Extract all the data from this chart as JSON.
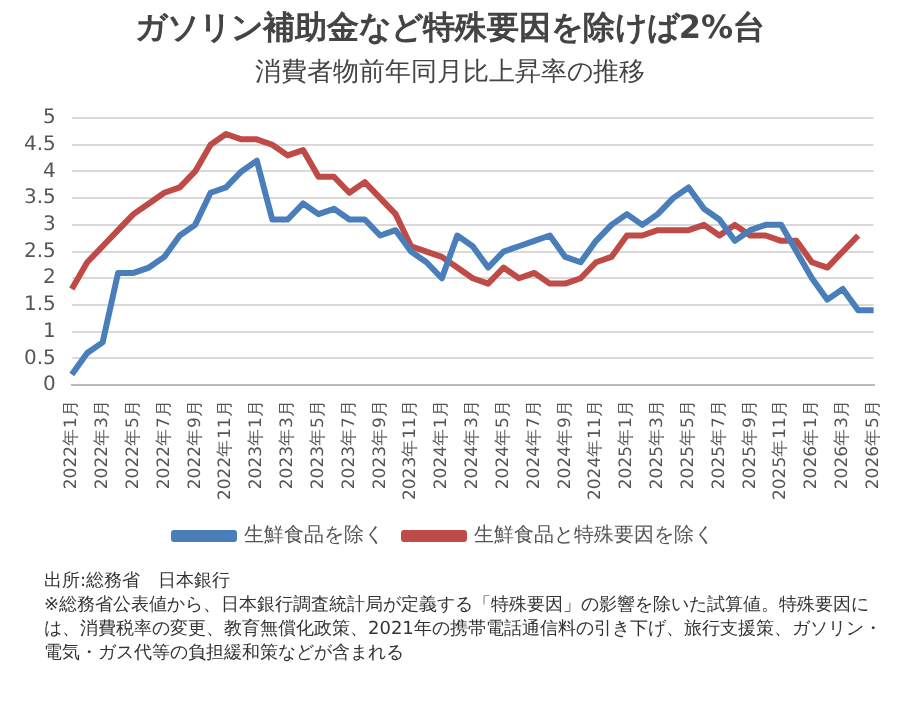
{
  "chart_data": {
    "type": "line",
    "title": "ガソリン補助金など特殊要因を除けば2%台",
    "subtitle": "消費者物前年同月比上昇率の推移",
    "categories": [
      "2022年1月",
      null,
      "2022年3月",
      null,
      "2022年5月",
      null,
      "2022年7月",
      null,
      "2022年9月",
      null,
      "2022年11月",
      null,
      "2023年1月",
      null,
      "2023年3月",
      null,
      "2023年5月",
      null,
      "2023年7月",
      null,
      "2023年9月",
      null,
      "2023年11月",
      null,
      "2024年1月",
      null,
      "2024年3月",
      null,
      "2024年5月",
      null,
      "2024年7月",
      null,
      "2024年9月",
      null,
      "2024年11月",
      null,
      "2025年1月",
      null,
      "2025年3月",
      null,
      "2025年5月",
      null,
      "2025年7月",
      null,
      "2025年9月",
      null,
      "2025年11月",
      null,
      "2026年1月",
      null,
      "2026年3月",
      null,
      "2026年5月"
    ],
    "series": [
      {
        "name": "生鮮食品を除く",
        "color": "#4a7ebb",
        "values": [
          0.2,
          0.6,
          0.8,
          2.1,
          2.1,
          2.2,
          2.4,
          2.8,
          3.0,
          3.6,
          3.7,
          4.0,
          4.2,
          3.1,
          3.1,
          3.4,
          3.2,
          3.3,
          3.1,
          3.1,
          2.8,
          2.9,
          2.5,
          2.3,
          2.0,
          2.8,
          2.6,
          2.2,
          2.5,
          2.6,
          2.7,
          2.8,
          2.4,
          2.3,
          2.7,
          3.0,
          3.2,
          3.0,
          3.2,
          3.5,
          3.7,
          3.3,
          3.1,
          2.7,
          2.9,
          3.0,
          3.0,
          2.5,
          2.0,
          1.6,
          1.8,
          1.4,
          1.4
        ]
      },
      {
        "name": "生鮮食品と特殊要因を除く",
        "color": "#be4b48",
        "values": [
          1.8,
          2.3,
          2.6,
          2.9,
          3.2,
          3.4,
          3.6,
          3.7,
          4.0,
          4.5,
          4.7,
          4.6,
          4.6,
          4.5,
          4.3,
          4.4,
          3.9,
          3.9,
          3.6,
          3.8,
          3.5,
          3.2,
          2.6,
          2.5,
          2.4,
          2.2,
          2.0,
          1.9,
          2.2,
          2.0,
          2.1,
          1.9,
          1.9,
          2.0,
          2.3,
          2.4,
          2.8,
          2.8,
          2.9,
          2.9,
          2.9,
          3.0,
          2.8,
          3.0,
          2.8,
          2.8,
          2.7,
          2.7,
          2.3,
          2.2,
          2.5,
          2.8,
          null
        ]
      }
    ],
    "ylim": [
      0,
      5
    ],
    "yticks": [
      0,
      0.5,
      1,
      1.5,
      2,
      2.5,
      3,
      3.5,
      4,
      4.5,
      5
    ],
    "grid": "y",
    "legend": "bottom",
    "marker": "none",
    "line_style": "solid",
    "annotations": [
      "出所:総務省　日本銀行",
      "※総務省公表値から、日本銀行調査統計局が定義する「特殊要因」の影響を除いた試算値。特殊要因には、消費税率の変更、教育無償化政策、2021年の携帯電話通信料の引き下げ、旅行支援策、ガソリン・電気・ガス代等の負担緩和策などが含まれる"
    ]
  }
}
